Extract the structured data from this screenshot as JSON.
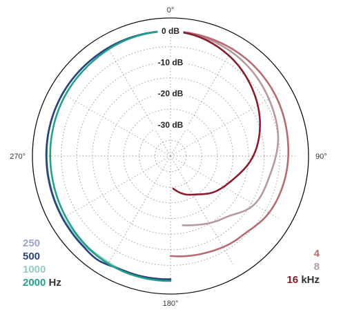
{
  "chart_data": {
    "type": "polar-line",
    "angle_labels": [
      "0°",
      "90°",
      "180°",
      "270°"
    ],
    "ring_labels": [
      "0 dB",
      "-10 dB",
      "-20 dB",
      "-30 dB"
    ],
    "r_range_db": [
      -40,
      0
    ],
    "grid": "dotted",
    "legend_left": {
      "unit": "Hz",
      "items": [
        {
          "label": "250",
          "color": "#9aa4c8"
        },
        {
          "label": "500",
          "color": "#26457f"
        },
        {
          "label": "1000",
          "color": "#93cfc0"
        },
        {
          "label": "2000",
          "color": "#23a08c"
        }
      ]
    },
    "legend_right": {
      "unit": "kHz",
      "items": [
        {
          "label": "4",
          "color": "#b86a72"
        },
        {
          "label": "8",
          "color": "#b5999c"
        },
        {
          "label": "16",
          "color": "#8b1a2e"
        }
      ]
    },
    "series": [
      {
        "name": "250",
        "color": "#9aa4c8",
        "side": "left",
        "angles": [
          180,
          195,
          205,
          215,
          225,
          240,
          260,
          280,
          300,
          320,
          340,
          360
        ],
        "db": [
          -0.6,
          -0.4,
          -0.3,
          -0.4,
          -0.3,
          -0.2,
          -0.2,
          -0.2,
          -0.1,
          -0.1,
          0,
          0
        ]
      },
      {
        "name": "500",
        "color": "#26457f",
        "side": "left",
        "angles": [
          180,
          195,
          205,
          215,
          225,
          240,
          260,
          280,
          300,
          320,
          340,
          360
        ],
        "db": [
          -0.5,
          -0.4,
          -0.3,
          0.6,
          0.2,
          -0.1,
          -0.3,
          -0.2,
          -0.1,
          -0.1,
          0,
          0
        ]
      },
      {
        "name": "1000",
        "color": "#93cfc0",
        "side": "left",
        "angles": [
          180,
          195,
          205,
          215,
          225,
          240,
          260,
          280,
          300,
          320,
          340,
          360
        ],
        "db": [
          -0.4,
          -0.3,
          -0.4,
          -0.7,
          -0.5,
          -0.4,
          -0.4,
          -0.3,
          -0.1,
          -0.1,
          0,
          0
        ]
      },
      {
        "name": "2000",
        "color": "#23a08c",
        "side": "left",
        "angles": [
          180,
          195,
          205,
          215,
          225,
          240,
          260,
          280,
          300,
          320,
          340,
          360
        ],
        "db": [
          0,
          0,
          -0.1,
          -0.3,
          -0.7,
          -1.2,
          -1.5,
          -1.4,
          -1.1,
          -0.8,
          -0.2,
          0
        ]
      },
      {
        "name": "4",
        "color": "#b86a72",
        "side": "right",
        "angles": [
          0,
          20,
          40,
          60,
          80,
          100,
          120,
          135,
          145,
          160,
          180
        ],
        "db": [
          0,
          -0.3,
          -0.6,
          -1.2,
          -2.0,
          -2.6,
          -3.6,
          -5.5,
          -6.0,
          -7.0,
          -8.0
        ]
      },
      {
        "name": "8",
        "color": "#b5999c",
        "side": "right",
        "angles": [
          0,
          20,
          40,
          60,
          80,
          100,
          120,
          135,
          145,
          160,
          170
        ],
        "db": [
          0,
          -0.8,
          -2.0,
          -3.6,
          -5.0,
          -7.5,
          -9.0,
          -13.0,
          -14.5,
          -16.5,
          -17.5
        ]
      },
      {
        "name": "16",
        "color": "#8b1a2e",
        "side": "right",
        "angles": [
          0,
          10,
          20,
          35,
          50,
          70,
          90,
          110,
          130,
          145,
          160,
          175
        ],
        "db": [
          0,
          -0.5,
          -1.5,
          -3.5,
          -6.0,
          -9.5,
          -13.5,
          -18.5,
          -22.0,
          -25.0,
          -27.0,
          -29.5
        ]
      }
    ]
  }
}
